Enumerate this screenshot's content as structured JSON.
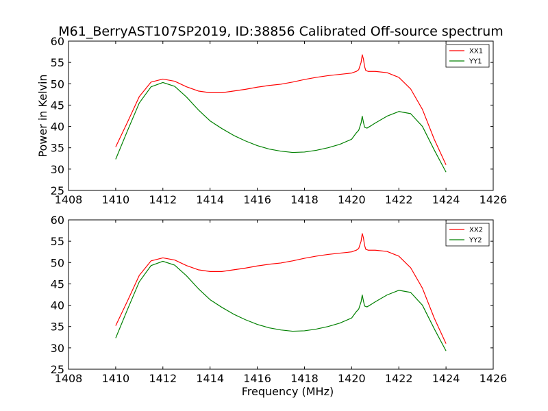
{
  "figure": {
    "title": "M61_BerryAST107SP2019, ID:38856 Calibrated Off-source spectrum"
  },
  "colors": {
    "XX": "#ff0000",
    "YY": "#008000"
  },
  "chart_data": [
    {
      "type": "line",
      "title": "M61_BerryAST107SP2019, ID:38856 Calibrated Off-source spectrum",
      "xlabel": "",
      "ylabel": "Power in Kelvin",
      "xlim": [
        1408,
        1426
      ],
      "ylim": [
        25,
        60
      ],
      "xticks": [
        1408,
        1410,
        1412,
        1414,
        1416,
        1418,
        1420,
        1422,
        1424,
        1426
      ],
      "yticks": [
        25,
        30,
        35,
        40,
        45,
        50,
        55,
        60
      ],
      "legend_position": "top-right",
      "grid": false,
      "series": [
        {
          "name": "XX1",
          "color": "#ff0000",
          "x": [
            1410.0,
            1410.5,
            1411.0,
            1411.5,
            1412.0,
            1412.5,
            1413.0,
            1413.5,
            1414.0,
            1414.5,
            1415.0,
            1415.5,
            1416.0,
            1416.5,
            1417.0,
            1417.5,
            1418.0,
            1418.5,
            1419.0,
            1419.5,
            1420.0,
            1420.2,
            1420.3,
            1420.4,
            1420.45,
            1420.5,
            1420.55,
            1420.6,
            1420.7,
            1421.0,
            1421.5,
            1422.0,
            1422.5,
            1423.0,
            1423.5,
            1424.0
          ],
          "y": [
            35.2,
            41.0,
            47.0,
            50.4,
            51.1,
            50.6,
            49.3,
            48.3,
            47.9,
            47.9,
            48.3,
            48.7,
            49.2,
            49.6,
            49.9,
            50.4,
            51.0,
            51.5,
            51.9,
            52.2,
            52.5,
            52.9,
            53.3,
            55.0,
            56.8,
            55.8,
            54.0,
            53.1,
            52.9,
            52.9,
            52.6,
            51.5,
            48.8,
            44.0,
            37.0,
            31.0
          ]
        },
        {
          "name": "YY1",
          "color": "#008000",
          "x": [
            1410.0,
            1410.5,
            1411.0,
            1411.5,
            1412.0,
            1412.5,
            1413.0,
            1413.5,
            1414.0,
            1414.5,
            1415.0,
            1415.5,
            1416.0,
            1416.5,
            1417.0,
            1417.5,
            1418.0,
            1418.5,
            1419.0,
            1419.5,
            1420.0,
            1420.2,
            1420.3,
            1420.4,
            1420.45,
            1420.5,
            1420.55,
            1420.65,
            1420.8,
            1421.0,
            1421.5,
            1422.0,
            1422.5,
            1423.0,
            1423.5,
            1424.0
          ],
          "y": [
            32.3,
            39.0,
            45.5,
            49.3,
            50.3,
            49.4,
            46.9,
            43.9,
            41.3,
            39.5,
            37.9,
            36.6,
            35.5,
            34.7,
            34.2,
            33.9,
            34.0,
            34.4,
            35.0,
            35.8,
            37.0,
            38.5,
            39.1,
            40.8,
            42.4,
            41.0,
            39.8,
            39.6,
            40.1,
            40.8,
            42.4,
            43.5,
            43.0,
            40.0,
            34.5,
            29.3
          ]
        }
      ]
    },
    {
      "type": "line",
      "title": "",
      "xlabel": "Frequency (MHz)",
      "ylabel": "",
      "xlim": [
        1408,
        1426
      ],
      "ylim": [
        25,
        60
      ],
      "xticks": [
        1408,
        1410,
        1412,
        1414,
        1416,
        1418,
        1420,
        1422,
        1424,
        1426
      ],
      "yticks": [
        25,
        30,
        35,
        40,
        45,
        50,
        55,
        60
      ],
      "legend_position": "top-right",
      "grid": false,
      "series": [
        {
          "name": "XX2",
          "color": "#ff0000",
          "x": [
            1410.0,
            1410.5,
            1411.0,
            1411.5,
            1412.0,
            1412.5,
            1413.0,
            1413.5,
            1414.0,
            1414.5,
            1415.0,
            1415.5,
            1416.0,
            1416.5,
            1417.0,
            1417.5,
            1418.0,
            1418.5,
            1419.0,
            1419.5,
            1420.0,
            1420.2,
            1420.3,
            1420.4,
            1420.45,
            1420.5,
            1420.55,
            1420.6,
            1420.7,
            1421.0,
            1421.5,
            1422.0,
            1422.5,
            1423.0,
            1423.5,
            1424.0
          ],
          "y": [
            35.2,
            41.0,
            47.0,
            50.4,
            51.1,
            50.6,
            49.3,
            48.3,
            47.9,
            47.9,
            48.3,
            48.7,
            49.2,
            49.6,
            49.9,
            50.4,
            51.0,
            51.5,
            51.9,
            52.2,
            52.5,
            52.9,
            53.3,
            55.0,
            56.8,
            55.8,
            54.0,
            53.1,
            52.9,
            52.9,
            52.6,
            51.5,
            48.8,
            44.0,
            37.0,
            31.0
          ]
        },
        {
          "name": "YY2",
          "color": "#008000",
          "x": [
            1410.0,
            1410.5,
            1411.0,
            1411.5,
            1412.0,
            1412.5,
            1413.0,
            1413.5,
            1414.0,
            1414.5,
            1415.0,
            1415.5,
            1416.0,
            1416.5,
            1417.0,
            1417.5,
            1418.0,
            1418.5,
            1419.0,
            1419.5,
            1420.0,
            1420.2,
            1420.3,
            1420.4,
            1420.45,
            1420.5,
            1420.55,
            1420.65,
            1420.8,
            1421.0,
            1421.5,
            1422.0,
            1422.5,
            1423.0,
            1423.5,
            1424.0
          ],
          "y": [
            32.3,
            39.0,
            45.5,
            49.3,
            50.3,
            49.4,
            46.9,
            43.9,
            41.3,
            39.5,
            37.9,
            36.6,
            35.5,
            34.7,
            34.2,
            33.9,
            34.0,
            34.4,
            35.0,
            35.8,
            37.0,
            38.5,
            39.1,
            40.8,
            42.4,
            41.0,
            39.8,
            39.6,
            40.1,
            40.8,
            42.4,
            43.5,
            43.0,
            40.0,
            34.5,
            29.3
          ]
        }
      ]
    }
  ]
}
